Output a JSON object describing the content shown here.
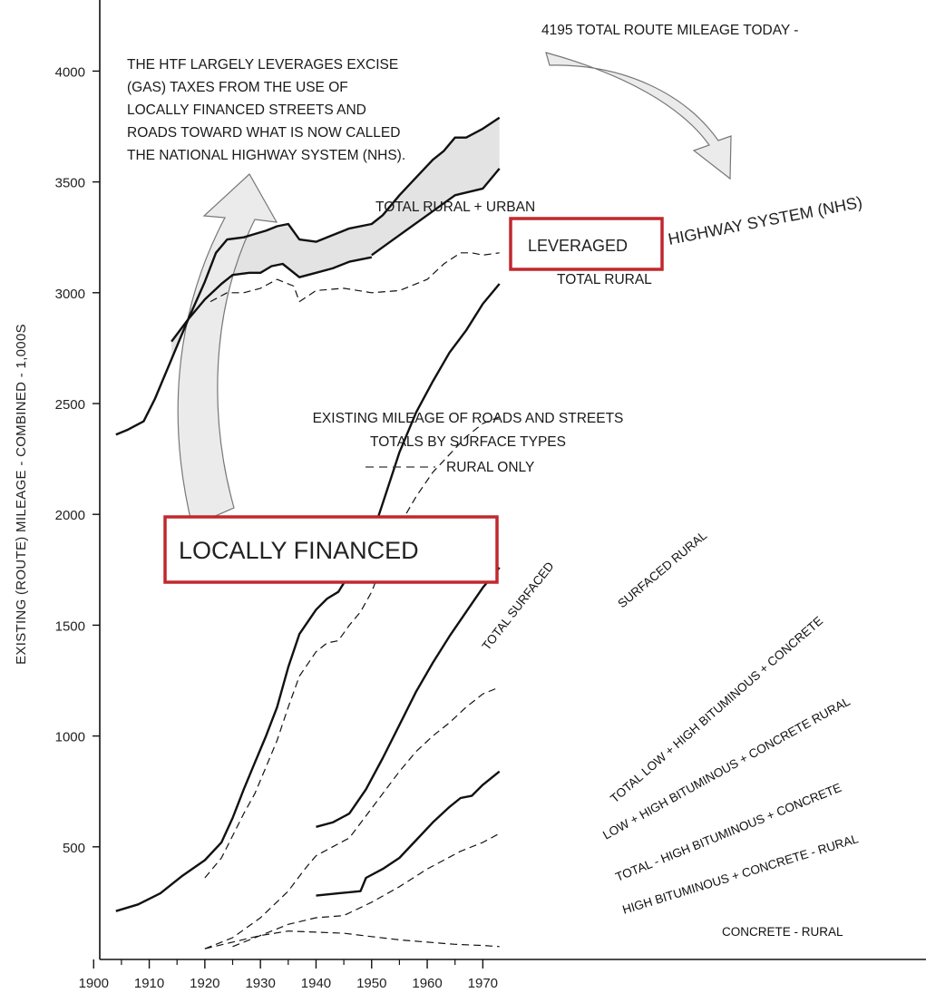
{
  "chart_data": {
    "type": "line",
    "title": "",
    "xlabel": "",
    "ylabel": "EXISTING (ROUTE) MILEAGE - COMBINED - 1,000S",
    "xlim": [
      1900,
      1974
    ],
    "ylim": [
      0,
      4200
    ],
    "x_ticks": [
      1900,
      1910,
      1920,
      1930,
      1940,
      1950,
      1960,
      1970
    ],
    "y_ticks": [
      500,
      1000,
      1500,
      2000,
      2500,
      3000,
      3500,
      4000
    ],
    "grid": false,
    "series": [
      {
        "name": "TOTAL RURAL + URBAN",
        "style": "solid",
        "x": [
          1904,
          1906,
          1909,
          1911,
          1914,
          1917,
          1920,
          1922,
          1924,
          1927,
          1929,
          1931,
          1933,
          1935,
          1937,
          1940,
          1943,
          1946,
          1950,
          1952,
          1955,
          1958,
          1961,
          1963,
          1965,
          1967,
          1970,
          1973
        ],
        "y": [
          2360,
          2380,
          2420,
          2520,
          2700,
          2880,
          3050,
          3180,
          3240,
          3250,
          3265,
          3280,
          3300,
          3310,
          3240,
          3230,
          3260,
          3290,
          3310,
          3350,
          3440,
          3520,
          3600,
          3640,
          3700,
          3700,
          3740,
          3790
        ]
      },
      {
        "name": "TOTAL RURAL",
        "style": "solid",
        "x": [
          1914,
          1917,
          1920,
          1923,
          1925,
          1928,
          1930,
          1932,
          1934,
          1937,
          1940,
          1943,
          1946,
          1950
        ],
        "y": [
          2780,
          2880,
          2970,
          3040,
          3080,
          3090,
          3090,
          3120,
          3130,
          3070,
          3090,
          3110,
          3140,
          3160
        ]
      },
      {
        "name": "TOTAL RURAL (dashed)",
        "style": "dashed",
        "x": [
          1921,
          1924,
          1927,
          1930,
          1933,
          1936,
          1937,
          1940,
          1945,
          1950,
          1955,
          1960,
          1963,
          1966,
          1968,
          1970,
          1973
        ],
        "y": [
          2960,
          3000,
          3000,
          3020,
          3060,
          3030,
          2960,
          3010,
          3020,
          3000,
          3010,
          3060,
          3130,
          3180,
          3180,
          3170,
          3180
        ]
      },
      {
        "name": "TOTAL SURFACED",
        "style": "solid",
        "x": [
          1904,
          1908,
          1912,
          1916,
          1920,
          1923,
          1925,
          1927,
          1929,
          1931,
          1933,
          1935,
          1937,
          1940,
          1942,
          1944,
          1946,
          1948,
          1950,
          1952,
          1955,
          1958,
          1961,
          1964,
          1967,
          1970,
          1973
        ],
        "y": [
          210,
          240,
          290,
          370,
          440,
          520,
          630,
          760,
          880,
          1000,
          1130,
          1310,
          1460,
          1570,
          1620,
          1650,
          1730,
          1790,
          1900,
          2050,
          2280,
          2460,
          2600,
          2730,
          2830,
          2950,
          3040
        ]
      },
      {
        "name": "SURFACED RURAL",
        "style": "dashed",
        "x": [
          1920,
          1923,
          1925,
          1927,
          1929,
          1931,
          1933,
          1935,
          1937,
          1940,
          1942,
          1944,
          1946,
          1948,
          1950,
          1952,
          1955,
          1958,
          1961,
          1964,
          1967,
          1970,
          1973
        ],
        "y": [
          360,
          450,
          550,
          650,
          740,
          860,
          980,
          1130,
          1270,
          1380,
          1420,
          1430,
          1500,
          1560,
          1650,
          1780,
          1950,
          2080,
          2190,
          2270,
          2350,
          2410,
          2440
        ]
      },
      {
        "name": "TOTAL LOW + HIGH BITUMINOUS + CONCRETE",
        "style": "solid",
        "x": [
          1940,
          1943,
          1946,
          1949,
          1952,
          1955,
          1958,
          1961,
          1964,
          1967,
          1970,
          1973
        ],
        "y": [
          590,
          610,
          650,
          760,
          900,
          1050,
          1200,
          1330,
          1450,
          1560,
          1670,
          1760
        ]
      },
      {
        "name": "LOW + HIGH BITUMINOUS + CONCRETE RURAL",
        "style": "dashed",
        "x": [
          1920,
          1925,
          1930,
          1935,
          1938,
          1940,
          1943,
          1946,
          1949,
          1952,
          1955,
          1958,
          1961,
          1964,
          1967,
          1970,
          1973
        ],
        "y": [
          40,
          90,
          180,
          300,
          400,
          460,
          500,
          540,
          640,
          740,
          840,
          930,
          1000,
          1060,
          1130,
          1190,
          1220
        ]
      },
      {
        "name": "TOTAL - HIGH BITUMINOUS + CONCRETE",
        "style": "solid",
        "x": [
          1940,
          1944,
          1948,
          1949,
          1952,
          1955,
          1958,
          1961,
          1964,
          1966,
          1968,
          1970,
          1973
        ],
        "y": [
          280,
          290,
          300,
          360,
          400,
          450,
          530,
          610,
          680,
          720,
          730,
          780,
          840
        ]
      },
      {
        "name": "HIGH BITUMINOUS + CONCRETE - RURAL",
        "style": "dashed",
        "x": [
          1925,
          1930,
          1935,
          1940,
          1945,
          1950,
          1955,
          1960,
          1963,
          1966,
          1970,
          1973
        ],
        "y": [
          50,
          100,
          150,
          180,
          190,
          250,
          320,
          400,
          440,
          480,
          520,
          560
        ]
      },
      {
        "name": "CONCRETE - RURAL",
        "style": "dashed",
        "x": [
          1920,
          1925,
          1930,
          1935,
          1940,
          1945,
          1950,
          1955,
          1960,
          1965,
          1970,
          1973
        ],
        "y": [
          40,
          70,
          100,
          120,
          115,
          110,
          95,
          80,
          70,
          60,
          55,
          50
        ]
      }
    ],
    "annotations": {
      "top_right": "4195 TOTAL ROUTE MILEAGE TODAY -",
      "htf_note": [
        "THE HTF LARGELY LEVERAGES EXCISE",
        "(GAS) TAXES FROM THE USE OF",
        "LOCALLY FINANCED STREETS AND",
        "ROADS TOWARD WHAT IS NOW CALLED",
        "THE NATIONAL HIGHWAY SYSTEM (NHS)."
      ],
      "total_rural_urban": "TOTAL RURAL + URBAN",
      "total_rural": "TOTAL RURAL",
      "leveraged": "LEVERAGED",
      "nhs_band": "HIGHWAY SYSTEM (NHS)",
      "existing_title": [
        "EXISTING MILEAGE OF ROADS AND STREETS",
        "TOTALS BY SURFACE TYPES"
      ],
      "rural_only": "RURAL ONLY",
      "locally_financed": "LOCALLY FINANCED",
      "total_surfaced": "TOTAL SURFACED",
      "surfaced_rural": "SURFACED RURAL",
      "total_low_high": "TOTAL LOW + HIGH BITUMINOUS + CONCRETE",
      "low_high_rural": "LOW + HIGH BITUMINOUS + CONCRETE RURAL",
      "total_high": "TOTAL - HIGH BITUMINOUS + CONCRETE",
      "high_rural": "HIGH BITUMINOUS + CONCRETE - RURAL",
      "concrete_rural": "CONCRETE - RURAL"
    },
    "colors": {
      "highlight_box": "#c0282d",
      "band_fill": "#e3e3e3",
      "arrow_fill": "#ebebeb",
      "line": "#111111"
    }
  }
}
